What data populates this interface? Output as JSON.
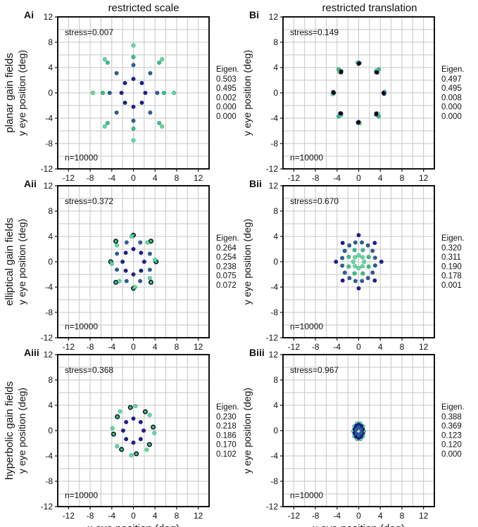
{
  "figure": {
    "column_titles": [
      "restricted scale",
      "restricted translation"
    ],
    "row_labels": [
      "planar gain fields",
      "elliptical gain fields",
      "hyperbolic gain fields"
    ],
    "xlabel": "x eye position (deg)",
    "ylabel": "y eye position (deg)",
    "eigen_header": "Eigen.",
    "n_label": "n=10000"
  },
  "colors": {
    "ring_inner": "#1c1c9a",
    "ring_mid": "#2a5e9e",
    "ring_outer": "#34c28a",
    "ring_outer_alt": "#57e0a0",
    "edge": "#0a0a14",
    "grid": "#c6c6c6",
    "axis": "#111111"
  },
  "chart_data": [
    {
      "type": "scatter",
      "panel": "Ai",
      "stress": "stress=0.007",
      "n": "n=10000",
      "eigen": [
        "0.503",
        "0.495",
        "0.002",
        "0.000",
        "0.000"
      ],
      "xlim": [
        -14,
        14
      ],
      "ylim": [
        -12,
        12
      ],
      "xticks": [
        "-12",
        "-8",
        "-4",
        "0",
        "4",
        "8",
        "12"
      ],
      "yticks": [
        "12",
        "8",
        "4",
        "0",
        "-4",
        "-8",
        "-12"
      ],
      "rings": [
        {
          "radius": 2.2,
          "color": "#1c1c9a",
          "dirs": 8,
          "offset": 0
        },
        {
          "radius": 4.4,
          "color": "#2a5e9e",
          "dirs": 8,
          "offset": 0
        },
        {
          "radius": 6.2,
          "color": "#34c28a",
          "dirs": 8,
          "offset": 0,
          "jitter": 0.55
        },
        {
          "radius": 7.5,
          "color": "#57e0a0",
          "dirs": 8,
          "offset": 0
        }
      ]
    },
    {
      "type": "scatter",
      "panel": "Bi",
      "stress": "stress=0.149",
      "n": "n=10000",
      "eigen": [
        "0.497",
        "0.495",
        "0.008",
        "0.000",
        "0.000"
      ],
      "xlim": [
        -14,
        14
      ],
      "ylim": [
        -12,
        12
      ],
      "xticks": [
        "-12",
        "-8",
        "-4",
        "0",
        "4",
        "8",
        "12"
      ],
      "yticks": [
        "12",
        "8",
        "4",
        "0",
        "-4",
        "-8",
        "-12"
      ],
      "rings": [
        {
          "radius": 5.0,
          "color": "#34c28a",
          "dirs": 8,
          "offset": 0,
          "jitter": 0.25
        },
        {
          "radius": 4.8,
          "color": "#57e0a0",
          "dirs": 8,
          "offset": 0.04
        },
        {
          "radius": 4.7,
          "color": "#1c1c9a",
          "dirs": 8,
          "offset": -0.03
        },
        {
          "radius": 4.6,
          "color": "#0a0a14",
          "dirs": 8,
          "offset": 0
        }
      ]
    },
    {
      "type": "scatter",
      "panel": "Aii",
      "stress": "stress=0.372",
      "n": "n=10000",
      "eigen": [
        "0.264",
        "0.254",
        "0.238",
        "0.075",
        "0.072"
      ],
      "xlim": [
        -14,
        14
      ],
      "ylim": [
        -12,
        12
      ],
      "xticks": [
        "-12",
        "-8",
        "-4",
        "0",
        "4",
        "8",
        "12"
      ],
      "yticks": [
        "12",
        "8",
        "4",
        "0",
        "-4",
        "-8",
        "-12"
      ],
      "rings": [
        {
          "radius": 2.0,
          "color": "#1c1c9a",
          "dirs": 8,
          "offset": 0
        },
        {
          "radius": 3.3,
          "color": "#2a5e9e",
          "dirs": 8,
          "offset": 0.39
        },
        {
          "radius": 4.4,
          "color": "#34c28a",
          "dirs": 8,
          "offset": 0,
          "jitter": 0.2,
          "edge": true
        },
        {
          "radius": 4.0,
          "color": "#57e0a0",
          "dirs": 8,
          "offset": 0.08
        }
      ]
    },
    {
      "type": "scatter",
      "panel": "Bii",
      "stress": "stress=0.670",
      "n": "n=10000",
      "eigen": [
        "0.320",
        "0.311",
        "0.190",
        "0.178",
        "0.001"
      ],
      "xlim": [
        -14,
        14
      ],
      "ylim": [
        -12,
        12
      ],
      "xticks": [
        "-12",
        "-8",
        "-4",
        "0",
        "4",
        "8",
        "12"
      ],
      "yticks": [
        "12",
        "8",
        "4",
        "0",
        "-4",
        "-8",
        "-12"
      ],
      "rings": [
        {
          "radius": 4.2,
          "color": "#1c1c9a",
          "dirs": 8,
          "offset": 0
        },
        {
          "radius": 3.1,
          "color": "#2a5e9e",
          "dirs": 16,
          "offset": 0.2
        },
        {
          "radius": 2.0,
          "color": "#34c28a",
          "dirs": 8,
          "offset": 0.39
        },
        {
          "radius": 1.0,
          "color": "#57e0a0",
          "dirs": 8,
          "offset": 0
        }
      ]
    },
    {
      "type": "scatter",
      "panel": "Aiii",
      "stress": "stress=0.368",
      "n": "n=10000",
      "eigen": [
        "0.230",
        "0.218",
        "0.186",
        "0.170",
        "0.102"
      ],
      "xlim": [
        -14,
        14
      ],
      "ylim": [
        -12,
        12
      ],
      "xticks": [
        "-12",
        "-8",
        "-4",
        "0",
        "4",
        "8",
        "12"
      ],
      "yticks": [
        "12",
        "8",
        "4",
        "0",
        "-4",
        "-8",
        "-12"
      ],
      "rings": [
        {
          "radius": 1.9,
          "color": "#1c1c9a",
          "dirs": 8,
          "offset": 0
        },
        {
          "radius": 3.7,
          "color": "#34c28a",
          "dirs": 8,
          "offset": 0.15,
          "edge": true
        },
        {
          "radius": 3.9,
          "color": "#57e0a0",
          "dirs": 8,
          "offset": -0.1
        }
      ]
    },
    {
      "type": "scatter",
      "panel": "Biii",
      "stress": "stress=0.967",
      "n": "n=10000",
      "eigen": [
        "0.388",
        "0.369",
        "0.123",
        "0.120",
        "0.000"
      ],
      "xlim": [
        -14,
        14
      ],
      "ylim": [
        -12,
        12
      ],
      "xticks": [
        "-12",
        "-8",
        "-4",
        "0",
        "4",
        "8",
        "12"
      ],
      "yticks": [
        "12",
        "8",
        "4",
        "0",
        "-4",
        "-8",
        "-12"
      ],
      "center": [
        0,
        -0.1
      ],
      "rings": [
        {
          "radius": 1.0,
          "color": "#57e0a0",
          "dirs": 10,
          "offset": 0,
          "sy": 1.3
        },
        {
          "radius": 0.8,
          "color": "#1c1c9a",
          "dirs": 10,
          "offset": 0.3,
          "sy": 1.3
        },
        {
          "radius": 0.5,
          "color": "#2a5e9e",
          "dirs": 6,
          "offset": 0.6,
          "sy": 1.3
        }
      ]
    }
  ]
}
